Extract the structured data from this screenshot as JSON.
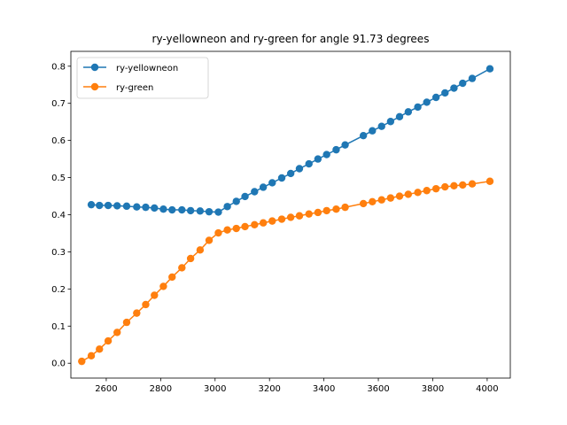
{
  "chart_data": {
    "type": "line",
    "title": "ry-yellowneon and ry-green for angle 91.73 degrees",
    "xlabel": "",
    "ylabel": "",
    "xlim": [
      2470,
      4085
    ],
    "ylim": [
      -0.04,
      0.84
    ],
    "xticks": [
      2600,
      2800,
      3000,
      3200,
      3400,
      3600,
      3800,
      4000
    ],
    "yticks": [
      0.0,
      0.1,
      0.2,
      0.3,
      0.4,
      0.5,
      0.6,
      0.7,
      0.8
    ],
    "ytick_labels": [
      "0.0",
      "0.1",
      "0.2",
      "0.3",
      "0.4",
      "0.5",
      "0.6",
      "0.7",
      "0.8"
    ],
    "grid": false,
    "legend": "top-left",
    "series": [
      {
        "name": "ry-yellowneon",
        "color": "#1f77b4",
        "x": [
          2545,
          2575,
          2607,
          2640,
          2675,
          2712,
          2745,
          2777,
          2810,
          2842,
          2878,
          2910,
          2945,
          2978,
          3012,
          3045,
          3078,
          3110,
          3145,
          3177,
          3210,
          3245,
          3278,
          3310,
          3345,
          3378,
          3410,
          3445,
          3478,
          3545,
          3578,
          3612,
          3645,
          3678,
          3710,
          3745,
          3778,
          3812,
          3845,
          3878,
          3910,
          3945,
          4010
        ],
        "y": [
          0.427,
          0.425,
          0.425,
          0.424,
          0.423,
          0.421,
          0.42,
          0.418,
          0.415,
          0.413,
          0.413,
          0.411,
          0.41,
          0.408,
          0.407,
          0.422,
          0.436,
          0.449,
          0.462,
          0.474,
          0.486,
          0.499,
          0.511,
          0.524,
          0.537,
          0.55,
          0.562,
          0.575,
          0.588,
          0.613,
          0.626,
          0.638,
          0.651,
          0.664,
          0.677,
          0.69,
          0.703,
          0.716,
          0.728,
          0.741,
          0.754,
          0.767,
          0.793
        ]
      },
      {
        "name": "ry-green",
        "color": "#ff7f0e",
        "x": [
          2510,
          2545,
          2575,
          2607,
          2640,
          2675,
          2712,
          2745,
          2777,
          2810,
          2842,
          2878,
          2910,
          2945,
          2978,
          3012,
          3045,
          3078,
          3110,
          3145,
          3177,
          3210,
          3245,
          3278,
          3310,
          3345,
          3378,
          3410,
          3445,
          3478,
          3545,
          3578,
          3612,
          3645,
          3678,
          3710,
          3745,
          3778,
          3812,
          3845,
          3878,
          3910,
          3945,
          4010
        ],
        "y": [
          0.005,
          0.02,
          0.038,
          0.06,
          0.083,
          0.11,
          0.135,
          0.158,
          0.183,
          0.207,
          0.232,
          0.257,
          0.282,
          0.305,
          0.331,
          0.351,
          0.359,
          0.363,
          0.368,
          0.373,
          0.378,
          0.383,
          0.388,
          0.393,
          0.397,
          0.402,
          0.406,
          0.411,
          0.415,
          0.42,
          0.43,
          0.435,
          0.44,
          0.445,
          0.45,
          0.455,
          0.46,
          0.465,
          0.47,
          0.475,
          0.478,
          0.48,
          0.483,
          0.49
        ]
      }
    ]
  }
}
